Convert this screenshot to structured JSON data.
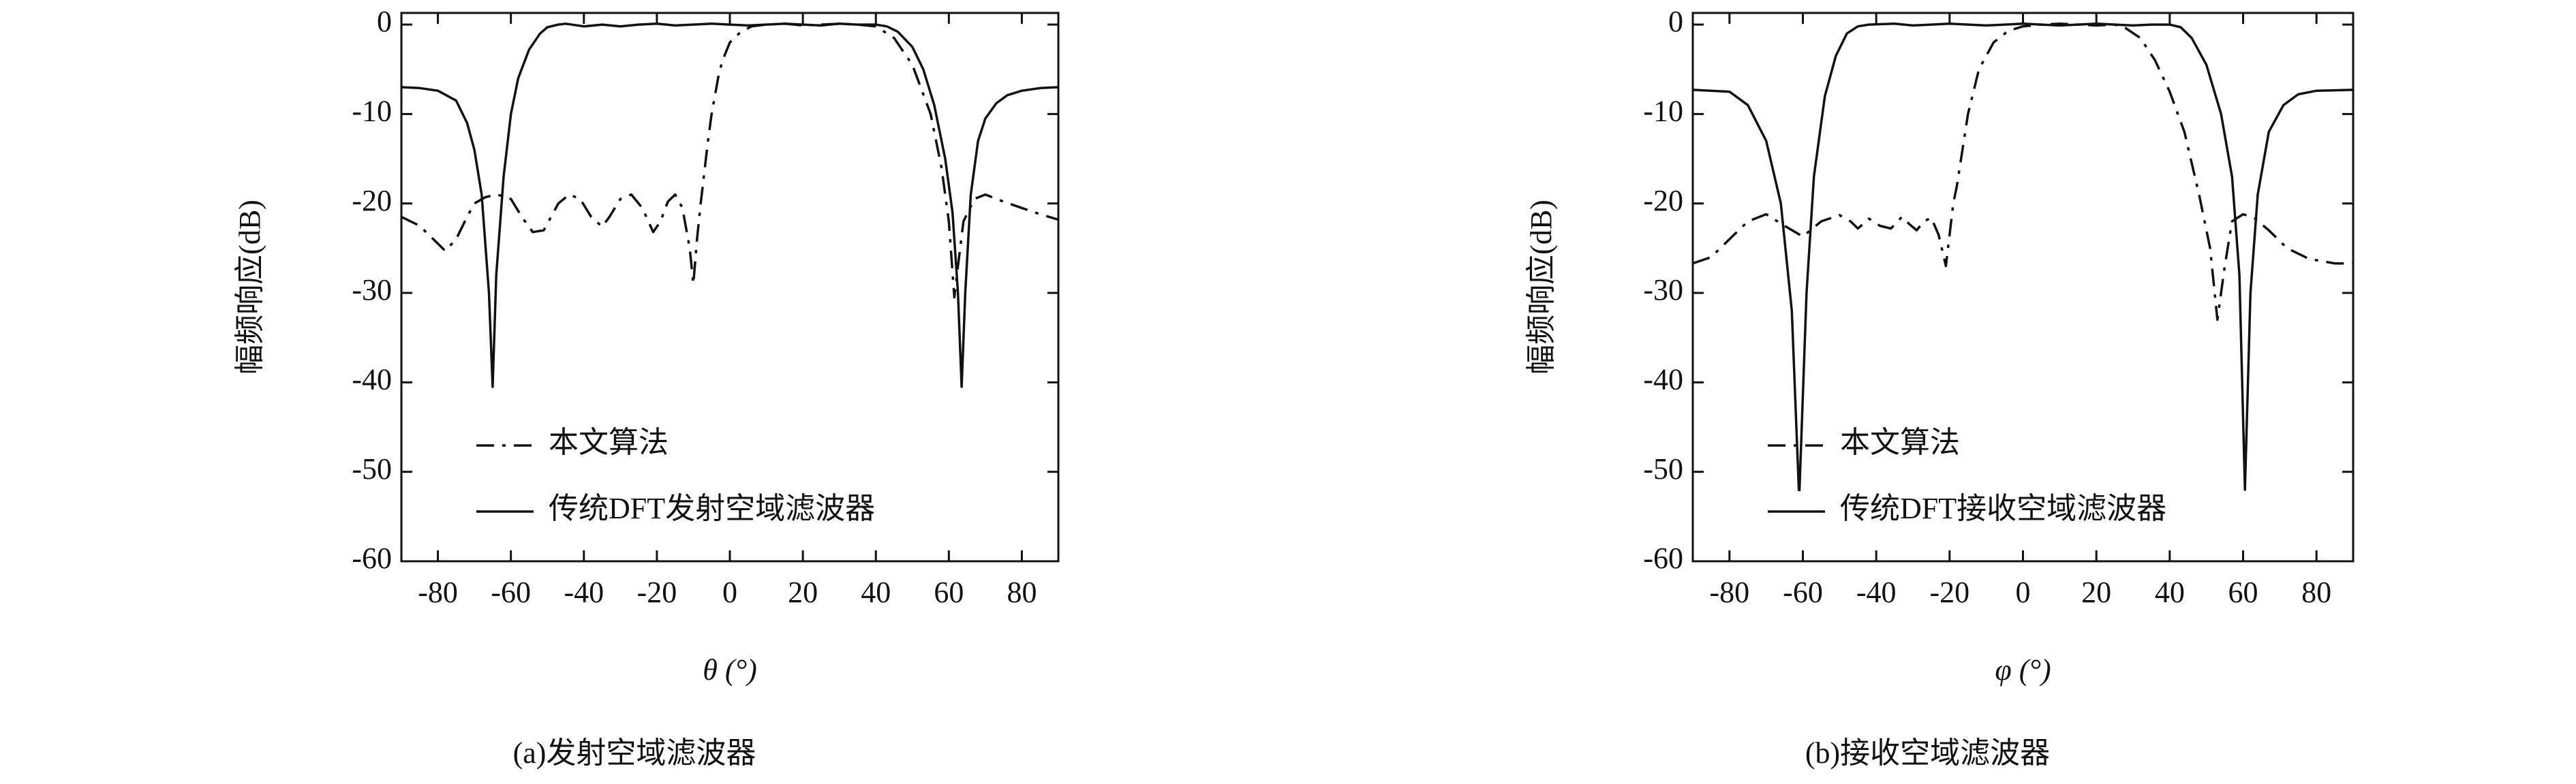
{
  "chart_data": [
    {
      "type": "line",
      "caption": "(a)发射空域滤波器",
      "xlabel": "θ (°)",
      "ylabel": "幅频响应(dB)",
      "xlim": [
        -90,
        90
      ],
      "ylim": [
        -60,
        1.3
      ],
      "xticks": [
        -80,
        -60,
        -40,
        -20,
        0,
        20,
        40,
        60,
        80
      ],
      "yticks": [
        0,
        -10,
        -20,
        -30,
        -40,
        -50,
        -60
      ],
      "legend": "lower left",
      "series": [
        {
          "name": "本文算法",
          "color": "#111111",
          "style": "dashdot",
          "x": [
            -90,
            -85,
            -80,
            -78,
            -75,
            -72,
            -70,
            -67,
            -64,
            -62,
            -60,
            -57,
            -54,
            -51,
            -49,
            -47,
            -44,
            -41,
            -38,
            -35,
            -33,
            -30,
            -27,
            -24,
            -21,
            -19,
            -17,
            -15,
            -13,
            -11,
            -10,
            -9,
            -8,
            -6,
            -5,
            -3,
            -2,
            0,
            3,
            6,
            10,
            15,
            20,
            25,
            30,
            35,
            40,
            45,
            50,
            55,
            58,
            60,
            61.5,
            62.5,
            64,
            67,
            70,
            75,
            80,
            85,
            90
          ],
          "values": [
            -21.5,
            -22.5,
            -24.5,
            -25.3,
            -24,
            -21.5,
            -20,
            -19.3,
            -19,
            -19.2,
            -19.5,
            -21.5,
            -23.2,
            -23,
            -21.5,
            -20,
            -19,
            -19.5,
            -21.5,
            -22.6,
            -21.5,
            -19.5,
            -19,
            -20.5,
            -23.2,
            -22,
            -19.8,
            -19,
            -20.5,
            -25,
            -29,
            -24,
            -20,
            -13,
            -10,
            -5.5,
            -4,
            -2,
            -0.8,
            -0.2,
            0,
            0.1,
            -0.1,
            0,
            0.1,
            0,
            -0.2,
            -1.5,
            -4.5,
            -10,
            -16,
            -22,
            -30.5,
            -27,
            -22,
            -19.5,
            -19,
            -19.8,
            -20.5,
            -21.2,
            -21.8
          ]
        },
        {
          "name": "传统DFT发射空域滤波器",
          "color": "#111111",
          "style": "solid",
          "x": [
            -90,
            -85,
            -80,
            -75,
            -72,
            -70,
            -68,
            -66,
            -65,
            -64,
            -62,
            -60,
            -58,
            -55,
            -52,
            -50,
            -47,
            -45,
            -40,
            -35,
            -30,
            -25,
            -20,
            -15,
            -10,
            -5,
            0,
            5,
            10,
            15,
            20,
            25,
            30,
            35,
            40,
            43,
            46,
            50,
            53,
            56,
            59,
            61,
            62.5,
            63.5,
            64.5,
            66,
            68,
            70,
            73,
            76,
            80,
            85,
            90
          ],
          "values": [
            -7.0,
            -7.1,
            -7.4,
            -8.5,
            -11,
            -14,
            -19,
            -30,
            -40.5,
            -28,
            -17,
            -10,
            -6,
            -2.8,
            -1.0,
            -0.3,
            0,
            0.1,
            -0.2,
            0,
            -0.2,
            0,
            0.1,
            -0.1,
            0,
            0.1,
            0,
            -0.1,
            0,
            0.1,
            0,
            -0.1,
            0.1,
            0,
            0,
            -0.2,
            -0.8,
            -2.5,
            -5,
            -9,
            -15,
            -21,
            -30,
            -40.5,
            -30,
            -19,
            -13,
            -10.5,
            -8.8,
            -7.9,
            -7.4,
            -7.1,
            -7.0
          ]
        }
      ]
    },
    {
      "type": "line",
      "caption": "(b)接收空域滤波器",
      "xlabel": "φ (°)",
      "ylabel": "幅频响应(dB)",
      "xlim": [
        -90,
        90
      ],
      "ylim": [
        -60,
        1.3
      ],
      "xticks": [
        -80,
        -60,
        -40,
        -20,
        0,
        20,
        40,
        60,
        80
      ],
      "yticks": [
        0,
        -10,
        -20,
        -30,
        -40,
        -50,
        -60
      ],
      "legend": "lower left",
      "series": [
        {
          "name": "本文算法",
          "color": "#111111",
          "style": "dashdot",
          "x": [
            -90,
            -85,
            -80,
            -75,
            -70,
            -65,
            -60,
            -55,
            -50,
            -47,
            -45,
            -42,
            -39,
            -36,
            -33,
            -31,
            -29,
            -27,
            -25,
            -23,
            -21,
            -19,
            -18,
            -15,
            -12,
            -8,
            -4,
            0,
            5,
            10,
            15,
            20,
            25,
            28,
            32,
            36,
            40,
            44,
            48,
            51,
            53,
            55,
            57,
            60,
            63,
            67,
            72,
            78,
            85,
            90
          ],
          "values": [
            -26.7,
            -26,
            -24,
            -22,
            -21.2,
            -22.5,
            -23.7,
            -22,
            -21.3,
            -22,
            -22.8,
            -21.7,
            -22.5,
            -22.8,
            -21.5,
            -22.3,
            -23,
            -22,
            -21.6,
            -23.5,
            -27,
            -20,
            -18,
            -10,
            -5,
            -2,
            -0.7,
            -0.2,
            0,
            0.1,
            0,
            -0.1,
            0,
            -0.4,
            -1.5,
            -4,
            -7.5,
            -12,
            -19,
            -25,
            -33,
            -27,
            -22,
            -21.2,
            -21.6,
            -23,
            -25,
            -26.2,
            -26.7,
            -26.7
          ]
        },
        {
          "name": "传统DFT接收空域滤波器",
          "color": "#111111",
          "style": "solid",
          "x": [
            -90,
            -80,
            -75,
            -70,
            -66,
            -63,
            -61,
            -59,
            -57,
            -54,
            -51,
            -48,
            -45,
            -42,
            -35,
            -30,
            -25,
            -20,
            -15,
            -10,
            -5,
            0,
            5,
            10,
            15,
            20,
            25,
            30,
            35,
            40,
            43,
            46,
            50,
            54,
            57,
            59,
            60.5,
            62,
            64,
            67,
            71,
            75,
            80,
            90
          ],
          "values": [
            -7.3,
            -7.5,
            -9,
            -13,
            -20,
            -32,
            -53,
            -30,
            -17,
            -8,
            -3.5,
            -1,
            -0.2,
            0,
            0.1,
            -0.1,
            0,
            0.1,
            0,
            -0.1,
            0,
            0.1,
            0,
            -0.1,
            0,
            0.1,
            0,
            -0.1,
            0,
            0,
            -0.3,
            -1.5,
            -4.5,
            -10,
            -17,
            -28,
            -52,
            -30,
            -19,
            -12,
            -9,
            -7.8,
            -7.4,
            -7.3
          ]
        }
      ]
    }
  ]
}
